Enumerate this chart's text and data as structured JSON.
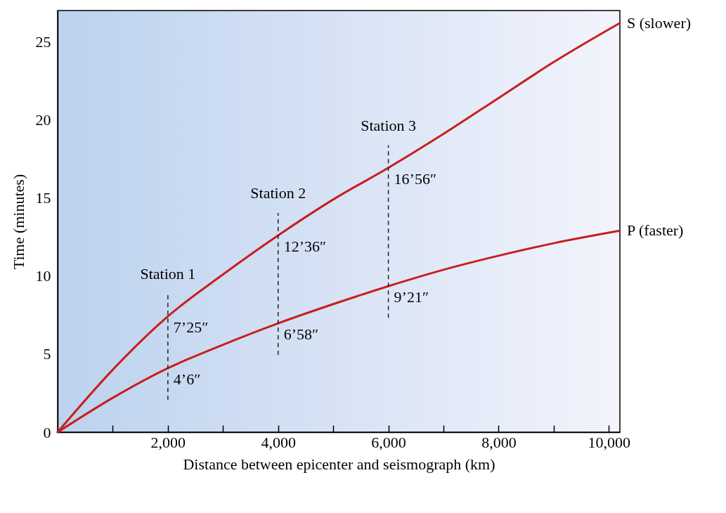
{
  "chart_data": {
    "type": "line",
    "xlabel": "Distance between epicenter and seismograph (km)",
    "ylabel": "Time (minutes)",
    "x": [
      0,
      1000,
      2000,
      3000,
      4000,
      5000,
      6000,
      7000,
      8000,
      9000,
      10200
    ],
    "series": [
      {
        "name": "S (slower)",
        "color": "#c81e1e",
        "values": [
          0,
          4.0,
          7.42,
          10.1,
          12.6,
          14.9,
          16.93,
          19.1,
          21.4,
          23.7,
          26.2
        ]
      },
      {
        "name": "P (faster)",
        "color": "#c81e1e",
        "values": [
          0,
          2.2,
          4.1,
          5.6,
          6.97,
          8.2,
          9.35,
          10.4,
          11.3,
          12.1,
          12.9
        ]
      }
    ],
    "xlim": [
      0,
      10200
    ],
    "ylim": [
      0,
      27
    ],
    "xticks": [
      {
        "value": 1000,
        "label": null
      },
      {
        "value": 2000,
        "label": "2,000"
      },
      {
        "value": 3000,
        "label": null
      },
      {
        "value": 4000,
        "label": "4,000"
      },
      {
        "value": 5000,
        "label": null
      },
      {
        "value": 6000,
        "label": "6,000"
      },
      {
        "value": 7000,
        "label": null
      },
      {
        "value": 8000,
        "label": "8,000"
      },
      {
        "value": 9000,
        "label": null
      },
      {
        "value": 10000,
        "label": "10,000"
      }
    ],
    "yticks": [
      0,
      5,
      10,
      15,
      20,
      25
    ],
    "ref_lines": [
      {
        "axis": "x",
        "value": 2000,
        "label": "Station 1",
        "line_style": "dashed",
        "color": "#222222"
      },
      {
        "axis": "x",
        "value": 4000,
        "label": "Station 2",
        "line_style": "dashed",
        "color": "#222222"
      },
      {
        "axis": "x",
        "value": 6000,
        "label": "Station 3",
        "line_style": "dashed",
        "color": "#222222"
      }
    ],
    "annotations": [
      {
        "text": "7’25″",
        "x": 2000,
        "y": 7.42
      },
      {
        "text": "4’6″",
        "x": 2000,
        "y": 4.1
      },
      {
        "text": "12’36″",
        "x": 4000,
        "y": 12.6
      },
      {
        "text": "6’58″",
        "x": 4000,
        "y": 6.97
      },
      {
        "text": "16’56″",
        "x": 6000,
        "y": 16.93
      },
      {
        "text": "9’21″",
        "x": 6000,
        "y": 9.35
      }
    ]
  }
}
